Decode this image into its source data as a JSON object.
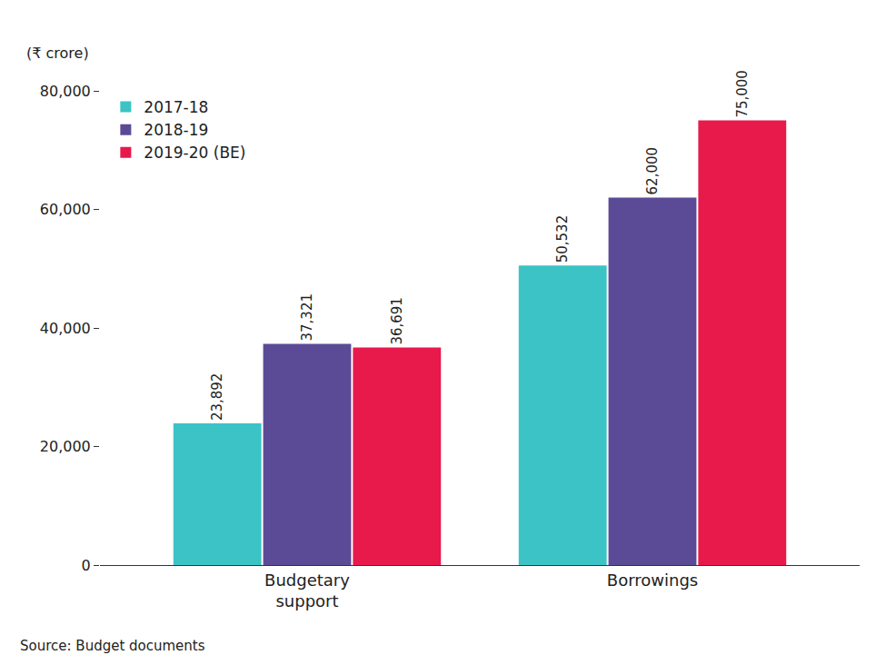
{
  "chart_data": {
    "type": "bar",
    "y_label": "(₹ crore)",
    "source": "Source: Budget documents",
    "categories": [
      "Budgetary support",
      "Borrowings"
    ],
    "series": [
      {
        "name": "2017-18",
        "color": "#3cc3c6",
        "values": [
          23892,
          50532
        ],
        "value_labels": [
          "23,892",
          "50,532"
        ]
      },
      {
        "name": "2018-19",
        "color": "#5b4b96",
        "values": [
          37321,
          62000
        ],
        "value_labels": [
          "37,321",
          "62,000"
        ]
      },
      {
        "name": "2019-20 (BE)",
        "color": "#e8194b",
        "values": [
          36691,
          75000
        ],
        "value_labels": [
          "36,691",
          "75,000"
        ]
      }
    ],
    "ylim": [
      0,
      80000
    ],
    "yticks": [
      0,
      {
        "value": 20000,
        "label": "20,000"
      },
      {
        "value": 40000,
        "label": "40,000"
      },
      {
        "value": 60000,
        "label": "60,000"
      },
      {
        "value": 80000,
        "label": "80,000"
      }
    ],
    "grid": false,
    "legend": "upper left",
    "data_labels": true
  }
}
